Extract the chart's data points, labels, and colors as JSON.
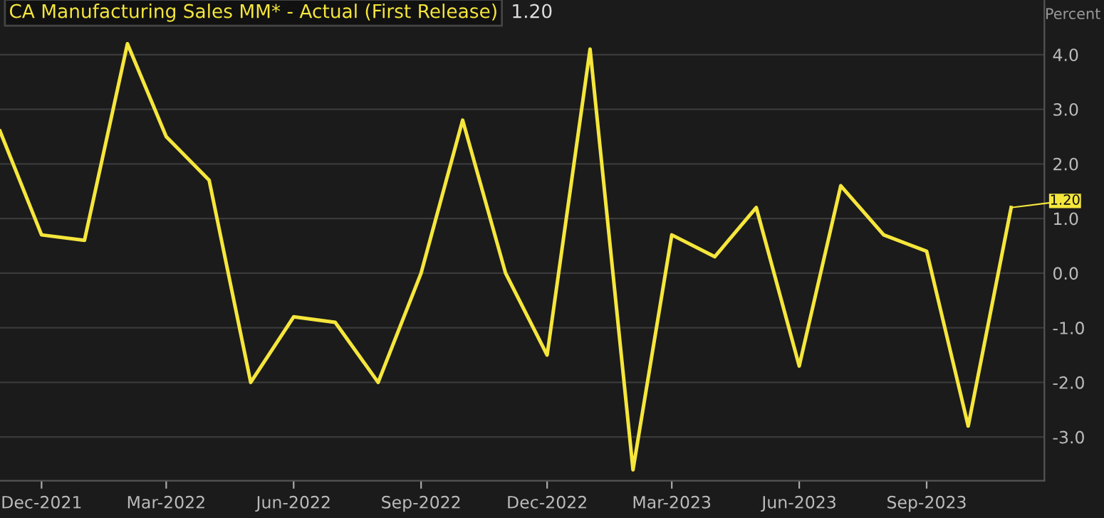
{
  "chart_data": {
    "type": "line",
    "title": "CA Manufacturing Sales MM* - Actual (First Release)",
    "ylabel": "Percent",
    "x": [
      "2021-11",
      "2021-12",
      "2022-01",
      "2022-02",
      "2022-03",
      "2022-04",
      "2022-05",
      "2022-06",
      "2022-07",
      "2022-08",
      "2022-09",
      "2022-10",
      "2022-11",
      "2022-12",
      "2023-01",
      "2023-02",
      "2023-03",
      "2023-04",
      "2023-05",
      "2023-06",
      "2023-07",
      "2023-08",
      "2023-09",
      "2023-10",
      "2023-11"
    ],
    "series": [
      {
        "color": "#f5e63c",
        "values": [
          2.6,
          0.7,
          0.6,
          4.2,
          2.5,
          1.7,
          -2.0,
          -0.8,
          -0.9,
          -2.0,
          0.0,
          2.8,
          0.0,
          -1.5,
          4.1,
          -3.6,
          0.7,
          0.3,
          1.2,
          -1.7,
          1.6,
          0.7,
          0.4,
          -2.8,
          1.2
        ]
      }
    ],
    "annotations": [
      "1.20",
      {
        "text": "1.20",
        "x": "2023-11",
        "y": 1.2
      }
    ],
    "xlim": [
      "2021-11",
      "2023-11-25"
    ],
    "xticks": [
      {
        "value": "2021-12",
        "label": "Dec-2021"
      },
      {
        "value": "2022-03",
        "label": "Mar-2022"
      },
      {
        "value": "2022-06",
        "label": "Jun-2022"
      },
      {
        "value": "2022-09",
        "label": "Sep-2022"
      },
      {
        "value": "2022-12",
        "label": "Dec-2022"
      },
      {
        "value": "2023-03",
        "label": "Mar-2023"
      },
      {
        "value": "2023-06",
        "label": "Jun-2023"
      },
      {
        "value": "2023-09",
        "label": "Sep-2023"
      }
    ],
    "ylim": [
      -3.8,
      5.0
    ],
    "yticks": [
      {
        "value": -3,
        "label": "-3.0"
      },
      {
        "value": -2,
        "label": "-2.0"
      },
      {
        "value": -1,
        "label": "-1.0"
      },
      {
        "value": 0,
        "label": "0.0"
      },
      {
        "value": 1,
        "label": "1.0"
      },
      {
        "value": 2,
        "label": "2.0"
      },
      {
        "value": 3,
        "label": "3.0"
      },
      {
        "value": 4,
        "label": "4.0"
      }
    ],
    "grid": "y",
    "legend": false,
    "marker": "none",
    "line_style": "solid"
  }
}
